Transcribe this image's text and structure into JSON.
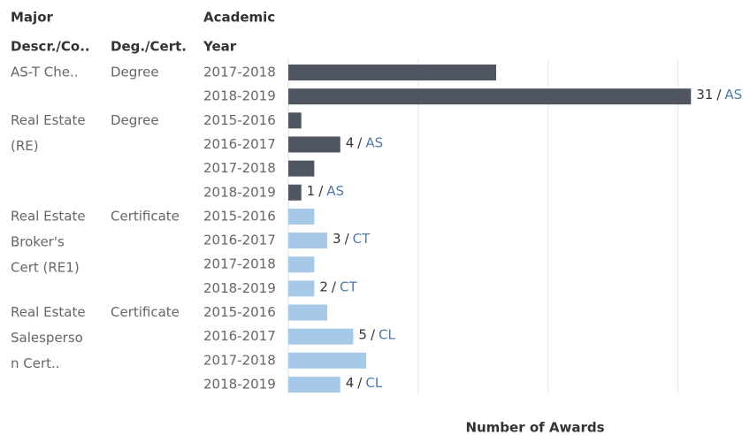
{
  "chart_data": {
    "type": "bar",
    "orientation": "horizontal",
    "headers": {
      "major": [
        "Major",
        "Descr./Co.."
      ],
      "degree": [
        "Deg./Cert."
      ],
      "year": [
        "Academic",
        "Year"
      ]
    },
    "x_label": "Number of Awards",
    "xlim": [
      0,
      35
    ],
    "xticks": [
      0,
      10,
      20,
      30
    ],
    "grid": true,
    "separator": "/",
    "groups": [
      {
        "major": [
          "AS-T Che.."
        ],
        "degree": "Degree",
        "color": "#4f5661",
        "categories": [
          "2017-2018",
          "2018-2019"
        ],
        "values": [
          16,
          31
        ],
        "award_types": [
          null,
          "AS"
        ]
      },
      {
        "major": [
          "Real Estate",
          "(RE)"
        ],
        "degree": "Degree",
        "color": "#4f5661",
        "categories": [
          "2015-2016",
          "2016-2017",
          "2017-2018",
          "2018-2019"
        ],
        "values": [
          1,
          4,
          2,
          1
        ],
        "award_types": [
          null,
          "AS",
          null,
          "AS"
        ]
      },
      {
        "major": [
          "Real Estate",
          "Broker's",
          "Cert (RE1)"
        ],
        "degree": "Certificate",
        "color": "#a5c9e6",
        "categories": [
          "2015-2016",
          "2016-2017",
          "2017-2018",
          "2018-2019"
        ],
        "values": [
          2,
          3,
          2,
          2
        ],
        "award_types": [
          null,
          "CT",
          null,
          "CT"
        ]
      },
      {
        "major": [
          "Real Estate",
          "Salesperso",
          "n Cert.."
        ],
        "degree": "Certificate",
        "color": "#a5c9e6",
        "categories": [
          "2015-2016",
          "2016-2017",
          "2017-2018",
          "2018-2019"
        ],
        "values": [
          3,
          5,
          6,
          4
        ],
        "award_types": [
          null,
          "CL",
          null,
          "CL"
        ]
      }
    ]
  }
}
